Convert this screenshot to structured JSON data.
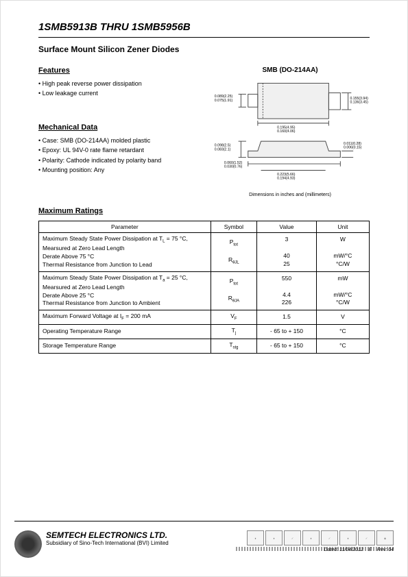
{
  "header": {
    "title": "1SMB5913B THRU 1SMB5956B",
    "subtitle": "Surface Mount Silicon Zener Diodes"
  },
  "features": {
    "heading": "Features",
    "items": [
      "High peak reverse power dissipation",
      "Low leakage current"
    ]
  },
  "mechanical": {
    "heading": "Mechanical Data",
    "items": [
      "Case: SMB (DO-214AA) molded plastic",
      "Epoxy: UL 94V-0 rate flame retardant",
      "Polarity: Cathode indicated by polarity band",
      "Mounting position: Any"
    ]
  },
  "package": {
    "label": "SMB (DO-214AA)",
    "dims_top": {
      "a": "0.089(2.25)",
      "a2": "0.075(1.91)",
      "b": "0.155(3.94)",
      "b2": "0.136(3.45)",
      "c": "0.195(4.95)",
      "c2": "0.160(4.06)"
    },
    "dims_side": {
      "d": "0.098(2.5)",
      "d2": "0.083(2.1)",
      "e": "0.060(1.52)",
      "e2": "0.030(0.76)",
      "f": "0.011(0.28)",
      "f2": "0.006(0.15)",
      "g": "0.223(5.66)",
      "g2": "0.194(4.93)"
    },
    "caption": "Dimensions in inches and (millimeters)"
  },
  "ratings": {
    "heading": "Maximum Ratings",
    "columns": [
      "Parameter",
      "Symbol",
      "Value",
      "Unit"
    ],
    "rows": [
      {
        "param": "Maximum Steady State Power Dissipation at T<sub>L</sub> = 75 °C,<br>Mearsured at Zero Lead Length<br>Derate Above 75 °C<br>Thermal Resistance from Junction to Lead",
        "symbol": "P<sub>tot</sub><br><br>R<sub>θJL</sub>",
        "value": "3<br><br>40<br>25",
        "unit": "W<br><br>mW/°C<br>°C/W"
      },
      {
        "param": "Maximum Steady State Power Dissipation at T<sub>a</sub> = 25 °C,<br>Mearsured at Zero Lead Length<br>Derate Above 25 °C<br>Thermal Resistance from Junction to Ambient",
        "symbol": "P<sub>tot</sub><br><br>R<sub>θJA</sub>",
        "value": "550<br><br>4.4<br>226",
        "unit": "mW<br><br>mW/°C<br>°C/W"
      },
      {
        "param": "Maximum Forward Voltage at I<sub>F</sub> = 200 mA",
        "symbol": "V<sub>F</sub>",
        "value": "1.5",
        "unit": "V"
      },
      {
        "param": "Operating Temperature Range",
        "symbol": "T<sub>j</sub>",
        "value": "- 65 to + 150",
        "unit": "°C"
      },
      {
        "param": "Storage Temperature Range",
        "symbol": "T<sub>stg</sub>",
        "value": "- 65 to + 150",
        "unit": "°C"
      }
    ]
  },
  "footer": {
    "company": "SEMTECH ELECTRONICS LTD.",
    "subsidiary": "Subsidiary of Sino-Tech International (BVI) Limited",
    "badges": [
      "MOODY",
      "MOODY",
      "",
      "",
      "",
      " ",
      " ",
      " "
    ],
    "dated_label": "Dated:",
    "dated_value": "11/04/2012",
    "e_label": "E",
    "rev_label": "Rev:",
    "rev_value": "04"
  },
  "colors": {
    "text": "#000000",
    "bg": "#ffffff",
    "drawing_stroke": "#444444"
  }
}
